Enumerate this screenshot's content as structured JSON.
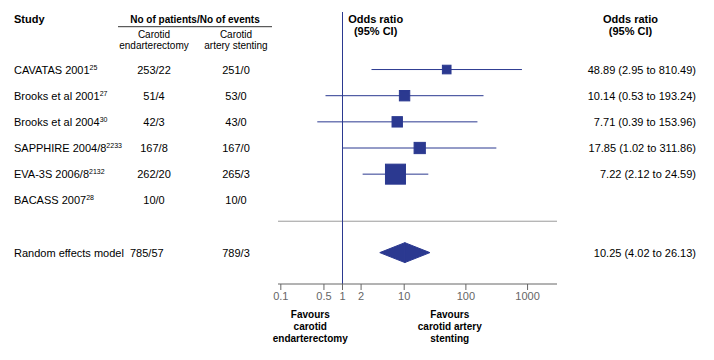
{
  "chart_data": {
    "type": "forest",
    "log": "x",
    "xlim": [
      0.09,
      3000
    ],
    "xticks": [
      0.1,
      0.5,
      1,
      2,
      10,
      100,
      1000
    ],
    "reference_line": 1,
    "grid": false,
    "color": "#2B3990",
    "study_header": "Study",
    "col_header": "No of patients/No of events",
    "col1_header": "Carotid\nendarterectomy",
    "col2_header": "Carotid\nartery stenting",
    "odds_header": "Odds ratio\n(95% CI)",
    "odds_header_right": "Odds ratio\n(95% CI)",
    "favours_left": "Favours\ncarotid\nendarterectomy",
    "favours_right": "Favours\ncarotid artery\nstenting",
    "studies": [
      {
        "label": "CAVATAS 2001",
        "sup": "25",
        "ce": "253/22",
        "cas": "251/0",
        "or": 48.89,
        "ci_lo": 2.95,
        "ci_hi": 810.49,
        "or_text": "48.89 (2.95 to 810.49)",
        "weight": 1.5
      },
      {
        "label": "Brooks et al 2001",
        "sup": "27",
        "ce": "51/4",
        "cas": "53/0",
        "or": 10.14,
        "ci_lo": 0.53,
        "ci_hi": 193.24,
        "or_text": "10.14 (0.53 to 193.24)",
        "weight": 2.5
      },
      {
        "label": "Brooks et al 2004",
        "sup": "30",
        "ce": "42/3",
        "cas": "43/0",
        "or": 7.71,
        "ci_lo": 0.39,
        "ci_hi": 153.96,
        "or_text": "7.71 (0.39 to 153.96)",
        "weight": 2.5
      },
      {
        "label": "SAPPHIRE 2004/8",
        "sup": "2233",
        "ce": "167/8",
        "cas": "167/0",
        "or": 17.85,
        "ci_lo": 1.02,
        "ci_hi": 311.86,
        "or_text": "17.85 (1.02 to 311.86)",
        "weight": 3.0
      },
      {
        "label": "EVA-3S 2006/8",
        "sup": "2132",
        "ce": "262/20",
        "cas": "265/3",
        "or": 7.22,
        "ci_lo": 2.12,
        "ci_hi": 24.59,
        "or_text": "7.22 (2.12 to 24.59)",
        "weight": 8.0
      },
      {
        "label": "BACASS 2007",
        "sup": "28",
        "ce": "10/0",
        "cas": "10/0",
        "or": null,
        "ci_lo": null,
        "ci_hi": null,
        "or_text": null,
        "weight": 0
      }
    ],
    "random_effects": {
      "label": "Random effects model",
      "ce": "785/57",
      "cas": "789/3",
      "or": 10.25,
      "ci_lo": 4.02,
      "ci_hi": 26.13,
      "or_text": "10.25 (4.02 to 26.13)"
    }
  }
}
